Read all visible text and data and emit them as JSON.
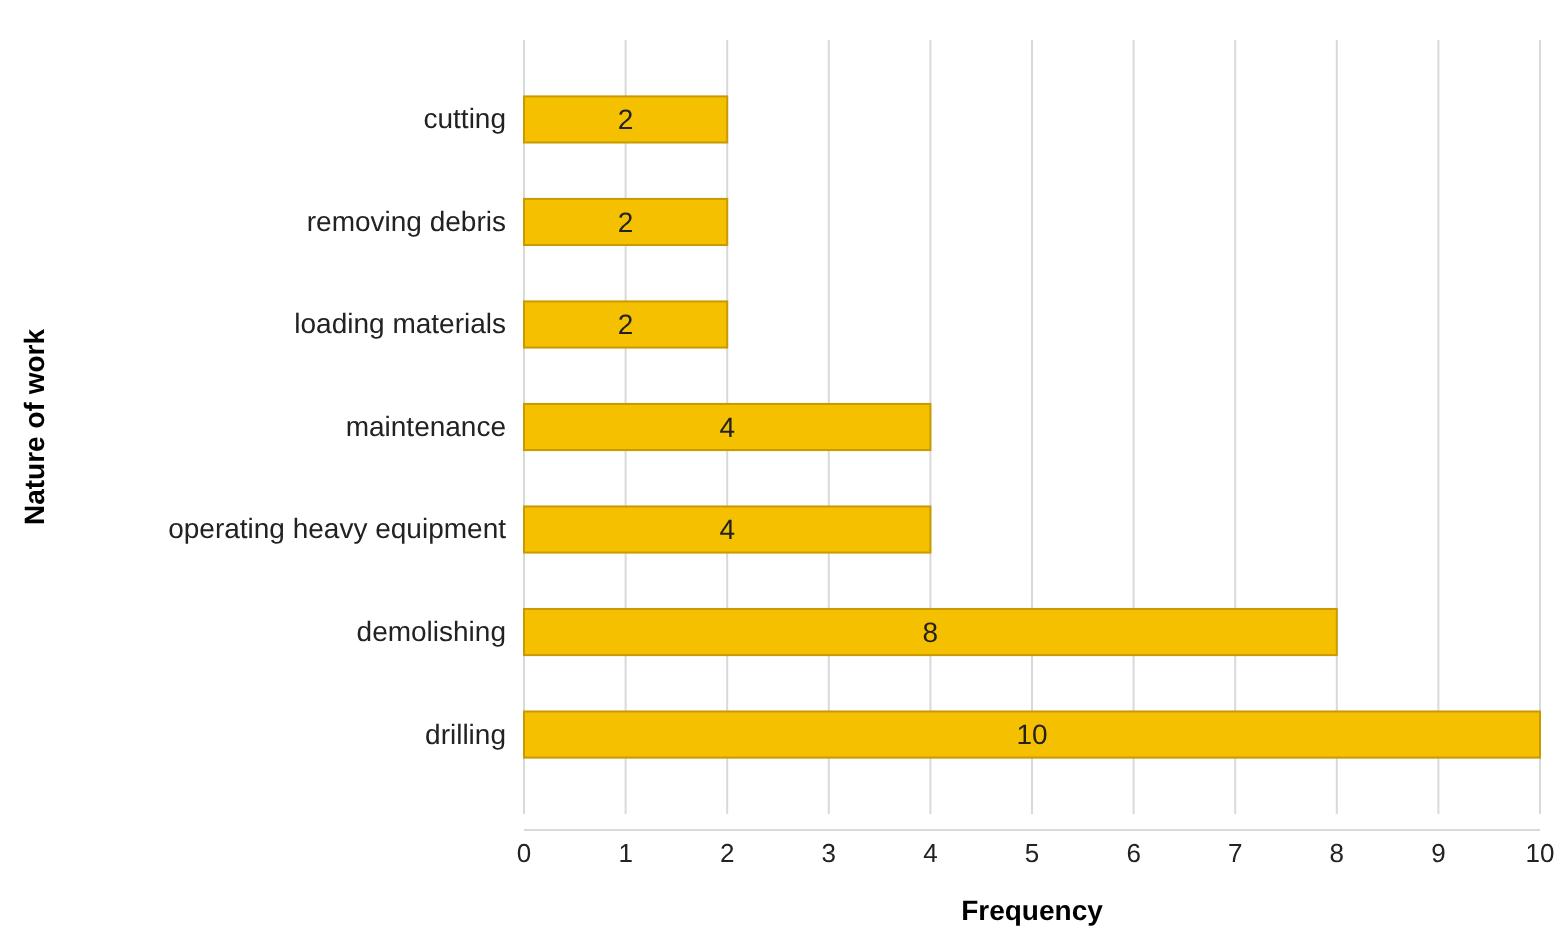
{
  "chart_data": {
    "type": "bar",
    "orientation": "horizontal",
    "xlabel": "Frequency",
    "ylabel": "Nature of work",
    "categories": [
      "cutting",
      "removing debris",
      "loading materials",
      "maintenance",
      "operating heavy equipment",
      "demolishing",
      "drilling"
    ],
    "values": [
      2,
      2,
      2,
      4,
      4,
      8,
      10
    ],
    "color": "#f5c000",
    "xlim": [
      0,
      10
    ],
    "xticks": [
      0,
      1,
      2,
      3,
      4,
      5,
      6,
      7,
      8,
      9,
      10
    ],
    "grid": "x",
    "data_labels": true
  }
}
